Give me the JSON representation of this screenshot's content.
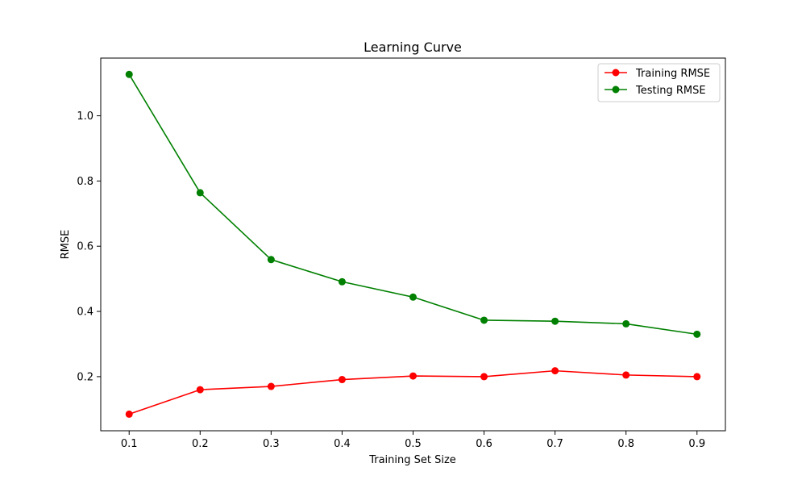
{
  "chart_data": {
    "type": "line",
    "title": "Learning Curve",
    "xlabel": "Training Set Size",
    "ylabel": "RMSE",
    "x": [
      0.1,
      0.2,
      0.3,
      0.4,
      0.5,
      0.6,
      0.7,
      0.8,
      0.9
    ],
    "x_ticks": [
      "0.1",
      "0.2",
      "0.3",
      "0.4",
      "0.5",
      "0.6",
      "0.7",
      "0.8",
      "0.9"
    ],
    "y_ticks": [
      "0.2",
      "0.4",
      "0.6",
      "0.8",
      "1.0"
    ],
    "xlim": [
      0.06,
      0.94
    ],
    "ylim": [
      0.034,
      1.177
    ],
    "grid": false,
    "legend_position": "top-right",
    "series": [
      {
        "name": "Training RMSE",
        "color": "#ff0000",
        "marker": "circle",
        "values": [
          0.085,
          0.16,
          0.17,
          0.191,
          0.202,
          0.2,
          0.218,
          0.205,
          0.2
        ]
      },
      {
        "name": "Testing RMSE",
        "color": "#008000",
        "marker": "circle",
        "values": [
          1.127,
          0.764,
          0.559,
          0.491,
          0.444,
          0.373,
          0.37,
          0.362,
          0.33
        ]
      }
    ]
  }
}
